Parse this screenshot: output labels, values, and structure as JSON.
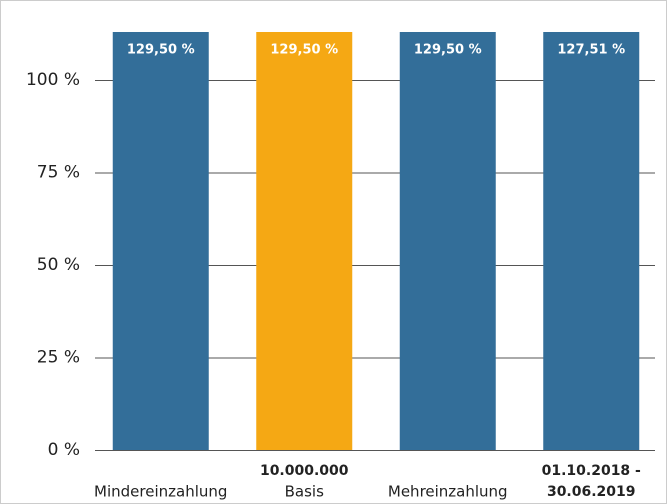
{
  "chart_data": {
    "type": "bar",
    "categories": [
      [
        "Mindereinzahlung"
      ],
      [
        "10.000.000",
        "Basis"
      ],
      [
        "Mehreinzahlung"
      ],
      [
        "01.10.2018 -",
        "30.06.2019"
      ]
    ],
    "values": [
      129.5,
      129.5,
      129.5,
      127.51
    ],
    "value_labels": [
      "129,50 %",
      "129,50 %",
      "129,50 %",
      "127,51 %"
    ],
    "colors": [
      "#336e99",
      "#f5a814",
      "#336e99",
      "#336e99"
    ],
    "ylim": [
      0,
      113
    ],
    "yticks": [
      {
        "value": 0,
        "label": "0 %"
      },
      {
        "value": 25,
        "label": "25 %"
      },
      {
        "value": 50,
        "label": "50 %"
      },
      {
        "value": 75,
        "label": "75 %"
      },
      {
        "value": 100,
        "label": "100 %"
      }
    ],
    "grid": true
  }
}
